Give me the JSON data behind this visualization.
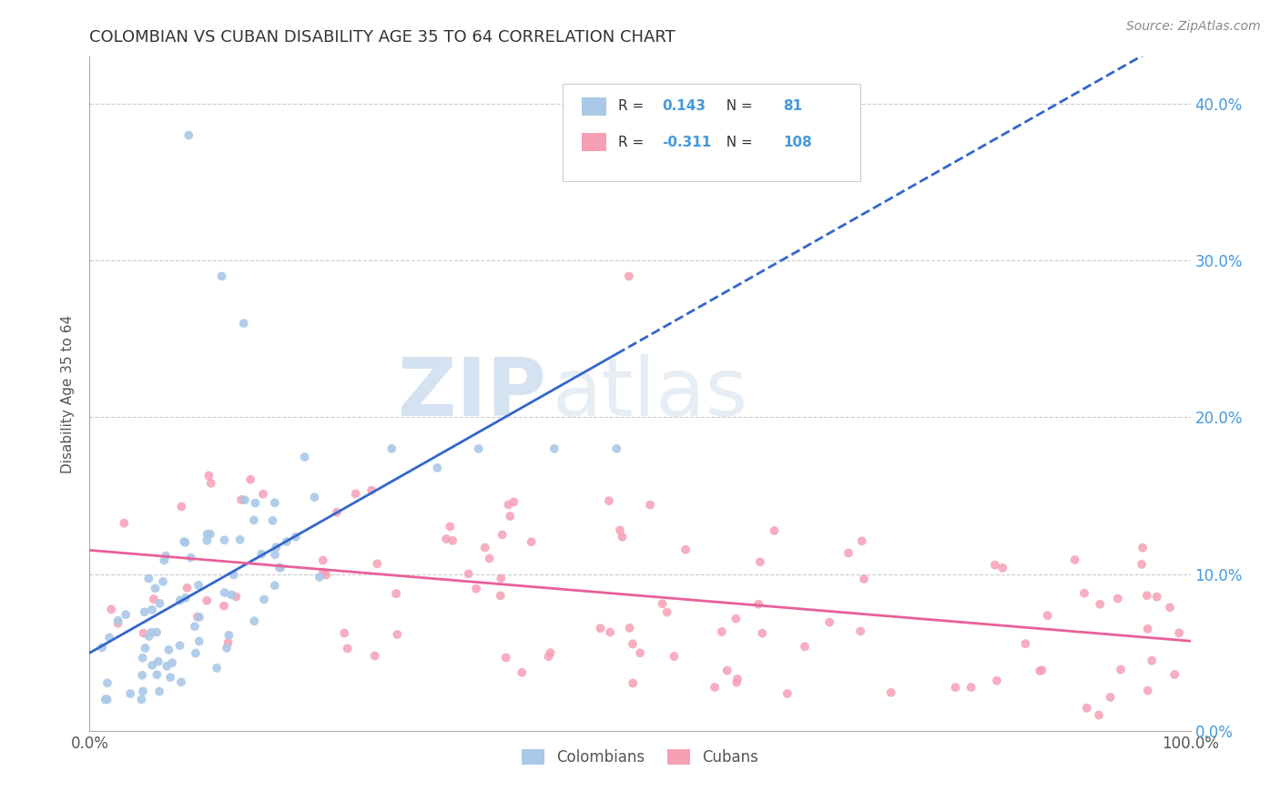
{
  "title": "COLOMBIAN VS CUBAN DISABILITY AGE 35 TO 64 CORRELATION CHART",
  "source": "Source: ZipAtlas.com",
  "ylabel": "Disability Age 35 to 64",
  "xlim": [
    0.0,
    1.0
  ],
  "ylim": [
    0.0,
    0.43
  ],
  "xticks": [
    0.0,
    0.2,
    0.4,
    0.6,
    0.8,
    1.0
  ],
  "xtick_labels": [
    "0.0%",
    "",
    "",
    "",
    "",
    "100.0%"
  ],
  "yticks": [
    0.0,
    0.1,
    0.2,
    0.3,
    0.4
  ],
  "ytick_labels": [
    "0.0%",
    "10.0%",
    "20.0%",
    "30.0%",
    "40.0%"
  ],
  "colombian_color": "#aac8e8",
  "cuban_color": "#f5a0b5",
  "colombian_line_color": "#3366cc",
  "cuban_line_color": "#e8609a",
  "R_colombian": 0.143,
  "N_colombian": 81,
  "R_cuban": -0.311,
  "N_cuban": 108,
  "watermark_zip": "ZIP",
  "watermark_atlas": "atlas",
  "background_color": "#ffffff",
  "grid_color": "#cccccc",
  "legend_label_colombian": "Colombians",
  "legend_label_cuban": "Cubans",
  "tick_color": "#4499dd",
  "title_color": "#333333",
  "source_color": "#888888"
}
